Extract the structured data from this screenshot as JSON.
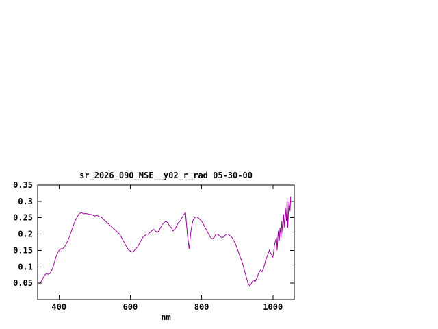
{
  "page": {
    "background": "#ffffff"
  },
  "chart_data": {
    "type": "line",
    "title": "sr_2026_090_MSE__y02_r_rad 05-30-00",
    "xlabel": "nm",
    "ylabel": "",
    "xlim": [
      340,
      1060
    ],
    "ylim": [
      0,
      0.35
    ],
    "grid": false,
    "legend": "none",
    "border_color": "#000000",
    "line_color": "#990099",
    "xticks": [
      {
        "value": 400,
        "label": "400"
      },
      {
        "value": 600,
        "label": "600"
      },
      {
        "value": 800,
        "label": "800"
      },
      {
        "value": 1000,
        "label": "1000"
      }
    ],
    "yticks": [
      {
        "value": 0.05,
        "label": "0.05"
      },
      {
        "value": 0.1,
        "label": "0.1"
      },
      {
        "value": 0.15,
        "label": "0.15"
      },
      {
        "value": 0.2,
        "label": "0.2"
      },
      {
        "value": 0.25,
        "label": "0.25"
      },
      {
        "value": 0.3,
        "label": "0.3"
      },
      {
        "value": 0.35,
        "label": "0.35"
      }
    ],
    "series": [
      {
        "name": "sr_2026_090_MSE__y02_r_rad",
        "points": [
          [
            345,
            0.048
          ],
          [
            350,
            0.055
          ],
          [
            355,
            0.065
          ],
          [
            360,
            0.075
          ],
          [
            365,
            0.08
          ],
          [
            370,
            0.077
          ],
          [
            375,
            0.08
          ],
          [
            380,
            0.09
          ],
          [
            385,
            0.105
          ],
          [
            390,
            0.125
          ],
          [
            395,
            0.14
          ],
          [
            400,
            0.15
          ],
          [
            405,
            0.155
          ],
          [
            410,
            0.155
          ],
          [
            415,
            0.16
          ],
          [
            420,
            0.17
          ],
          [
            425,
            0.18
          ],
          [
            430,
            0.195
          ],
          [
            435,
            0.21
          ],
          [
            440,
            0.225
          ],
          [
            445,
            0.24
          ],
          [
            450,
            0.25
          ],
          [
            455,
            0.26
          ],
          [
            460,
            0.265
          ],
          [
            465,
            0.265
          ],
          [
            470,
            0.262
          ],
          [
            475,
            0.263
          ],
          [
            480,
            0.262
          ],
          [
            485,
            0.26
          ],
          [
            490,
            0.26
          ],
          [
            495,
            0.258
          ],
          [
            500,
            0.255
          ],
          [
            505,
            0.258
          ],
          [
            510,
            0.255
          ],
          [
            515,
            0.253
          ],
          [
            520,
            0.25
          ],
          [
            525,
            0.245
          ],
          [
            530,
            0.24
          ],
          [
            535,
            0.235
          ],
          [
            540,
            0.23
          ],
          [
            545,
            0.225
          ],
          [
            550,
            0.22
          ],
          [
            555,
            0.215
          ],
          [
            560,
            0.21
          ],
          [
            565,
            0.205
          ],
          [
            570,
            0.2
          ],
          [
            575,
            0.19
          ],
          [
            580,
            0.18
          ],
          [
            585,
            0.17
          ],
          [
            590,
            0.16
          ],
          [
            595,
            0.152
          ],
          [
            600,
            0.148
          ],
          [
            605,
            0.145
          ],
          [
            610,
            0.148
          ],
          [
            615,
            0.155
          ],
          [
            620,
            0.16
          ],
          [
            625,
            0.17
          ],
          [
            630,
            0.18
          ],
          [
            635,
            0.19
          ],
          [
            640,
            0.195
          ],
          [
            645,
            0.2
          ],
          [
            650,
            0.2
          ],
          [
            655,
            0.205
          ],
          [
            660,
            0.21
          ],
          [
            665,
            0.215
          ],
          [
            670,
            0.21
          ],
          [
            675,
            0.205
          ],
          [
            680,
            0.21
          ],
          [
            685,
            0.22
          ],
          [
            690,
            0.23
          ],
          [
            695,
            0.235
          ],
          [
            700,
            0.24
          ],
          [
            705,
            0.235
          ],
          [
            710,
            0.225
          ],
          [
            715,
            0.22
          ],
          [
            720,
            0.21
          ],
          [
            725,
            0.215
          ],
          [
            730,
            0.225
          ],
          [
            735,
            0.235
          ],
          [
            740,
            0.24
          ],
          [
            745,
            0.25
          ],
          [
            750,
            0.26
          ],
          [
            755,
            0.265
          ],
          [
            760,
            0.2
          ],
          [
            765,
            0.155
          ],
          [
            770,
            0.21
          ],
          [
            775,
            0.24
          ],
          [
            780,
            0.25
          ],
          [
            785,
            0.253
          ],
          [
            790,
            0.25
          ],
          [
            795,
            0.245
          ],
          [
            800,
            0.24
          ],
          [
            805,
            0.23
          ],
          [
            810,
            0.22
          ],
          [
            815,
            0.21
          ],
          [
            820,
            0.2
          ],
          [
            825,
            0.19
          ],
          [
            830,
            0.185
          ],
          [
            835,
            0.19
          ],
          [
            840,
            0.2
          ],
          [
            845,
            0.2
          ],
          [
            850,
            0.195
          ],
          [
            855,
            0.19
          ],
          [
            860,
            0.19
          ],
          [
            865,
            0.195
          ],
          [
            870,
            0.2
          ],
          [
            875,
            0.2
          ],
          [
            880,
            0.195
          ],
          [
            885,
            0.19
          ],
          [
            890,
            0.18
          ],
          [
            895,
            0.17
          ],
          [
            900,
            0.155
          ],
          [
            905,
            0.14
          ],
          [
            910,
            0.125
          ],
          [
            915,
            0.11
          ],
          [
            920,
            0.09
          ],
          [
            925,
            0.07
          ],
          [
            930,
            0.05
          ],
          [
            935,
            0.042
          ],
          [
            940,
            0.05
          ],
          [
            945,
            0.06
          ],
          [
            950,
            0.055
          ],
          [
            955,
            0.065
          ],
          [
            960,
            0.08
          ],
          [
            965,
            0.09
          ],
          [
            970,
            0.085
          ],
          [
            975,
            0.1
          ],
          [
            980,
            0.12
          ],
          [
            985,
            0.135
          ],
          [
            990,
            0.15
          ],
          [
            995,
            0.14
          ],
          [
            1000,
            0.13
          ],
          [
            1005,
            0.17
          ],
          [
            1010,
            0.19
          ],
          [
            1012,
            0.15
          ],
          [
            1015,
            0.21
          ],
          [
            1018,
            0.18
          ],
          [
            1020,
            0.22
          ],
          [
            1023,
            0.19
          ],
          [
            1025,
            0.24
          ],
          [
            1028,
            0.2
          ],
          [
            1030,
            0.26
          ],
          [
            1033,
            0.22
          ],
          [
            1035,
            0.28
          ],
          [
            1038,
            0.24
          ],
          [
            1040,
            0.31
          ],
          [
            1042,
            0.22
          ],
          [
            1045,
            0.3
          ],
          [
            1048,
            0.27
          ],
          [
            1050,
            0.315
          ]
        ]
      }
    ]
  }
}
